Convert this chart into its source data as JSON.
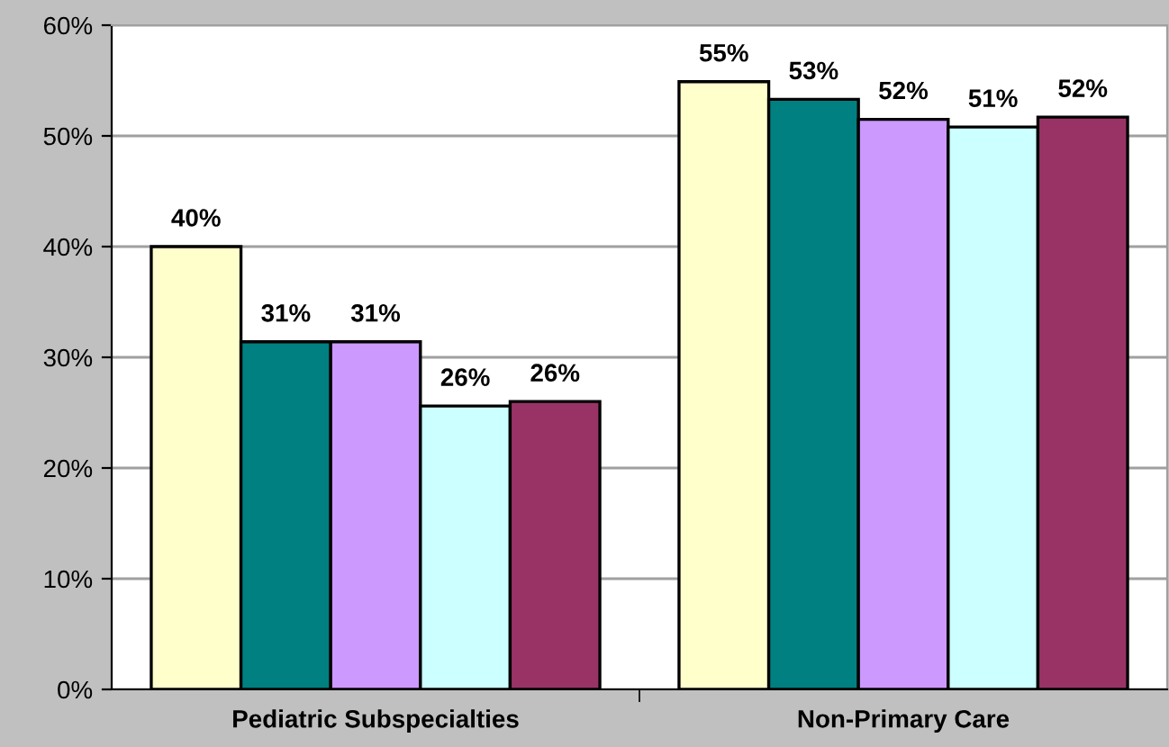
{
  "chart_data": {
    "type": "bar",
    "categories": [
      "Pediatric Subspecialties",
      "Non-Primary Care"
    ],
    "series": [
      {
        "color": "#ffffcc",
        "values": [
          40.0,
          54.9
        ],
        "value_labels": [
          "40%",
          "55%"
        ]
      },
      {
        "color": "#008080",
        "values": [
          31.4,
          53.3
        ],
        "value_labels": [
          "31%",
          "53%"
        ]
      },
      {
        "color": "#cc99ff",
        "values": [
          31.4,
          51.5
        ],
        "value_labels": [
          "31%",
          "52%"
        ]
      },
      {
        "color": "#ccffff",
        "values": [
          25.6,
          50.8
        ],
        "value_labels": [
          "26%",
          "51%"
        ]
      },
      {
        "color": "#993366",
        "values": [
          26.0,
          51.7
        ],
        "value_labels": [
          "26%",
          "52%"
        ]
      }
    ],
    "ylim": [
      0,
      60
    ],
    "yticks": [
      {
        "value": 0,
        "label": "0%"
      },
      {
        "value": 10,
        "label": "10%"
      },
      {
        "value": 20,
        "label": "20%"
      },
      {
        "value": 30,
        "label": "30%"
      },
      {
        "value": 40,
        "label": "40%"
      },
      {
        "value": 50,
        "label": "50%"
      },
      {
        "value": 60,
        "label": "60%"
      }
    ],
    "grid": "y",
    "legend": false
  }
}
